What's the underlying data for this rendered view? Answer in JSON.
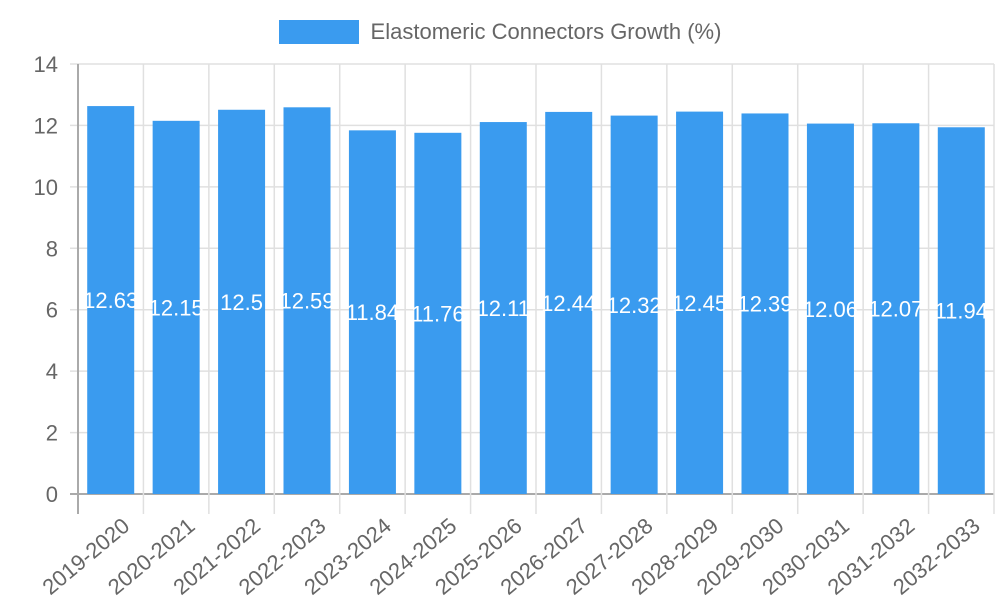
{
  "chart_data": {
    "type": "bar",
    "title": "",
    "xlabel": "",
    "ylabel": "",
    "legend": {
      "position": "top",
      "entries": [
        "Elastomeric Connectors Growth (%)"
      ]
    },
    "categories": [
      "2019-2020",
      "2020-2021",
      "2021-2022",
      "2022-2023",
      "2023-2024",
      "2024-2025",
      "2025-2026",
      "2026-2027",
      "2027-2028",
      "2028-2029",
      "2029-2030",
      "2030-2031",
      "2031-2032",
      "2032-2033"
    ],
    "series": [
      {
        "name": "Elastomeric Connectors Growth (%)",
        "color": "#3a9bef",
        "values": [
          12.63,
          12.15,
          12.51,
          12.59,
          11.84,
          11.76,
          12.11,
          12.44,
          12.32,
          12.45,
          12.39,
          12.06,
          12.07,
          11.94
        ]
      }
    ],
    "data_labels": [
      "12.63",
      "12.15",
      "12.5",
      "12.59",
      "11.84",
      "11.76",
      "12.11",
      "12.44",
      "12.32",
      "12.45",
      "12.39",
      "12.06",
      "12.07",
      "11.94"
    ],
    "ylim": [
      0,
      14
    ],
    "yticks": [
      0,
      2,
      4,
      6,
      8,
      10,
      12,
      14
    ],
    "grid": true
  },
  "legend": {
    "label": "Elastomeric Connectors Growth (%)",
    "color": "#3a9bef"
  },
  "colors": {
    "bar": "#3a9bef",
    "grid": "#e0e0e0",
    "axis": "#aaaaaa",
    "tick_text": "#666666",
    "data_label": "#ffffff"
  }
}
